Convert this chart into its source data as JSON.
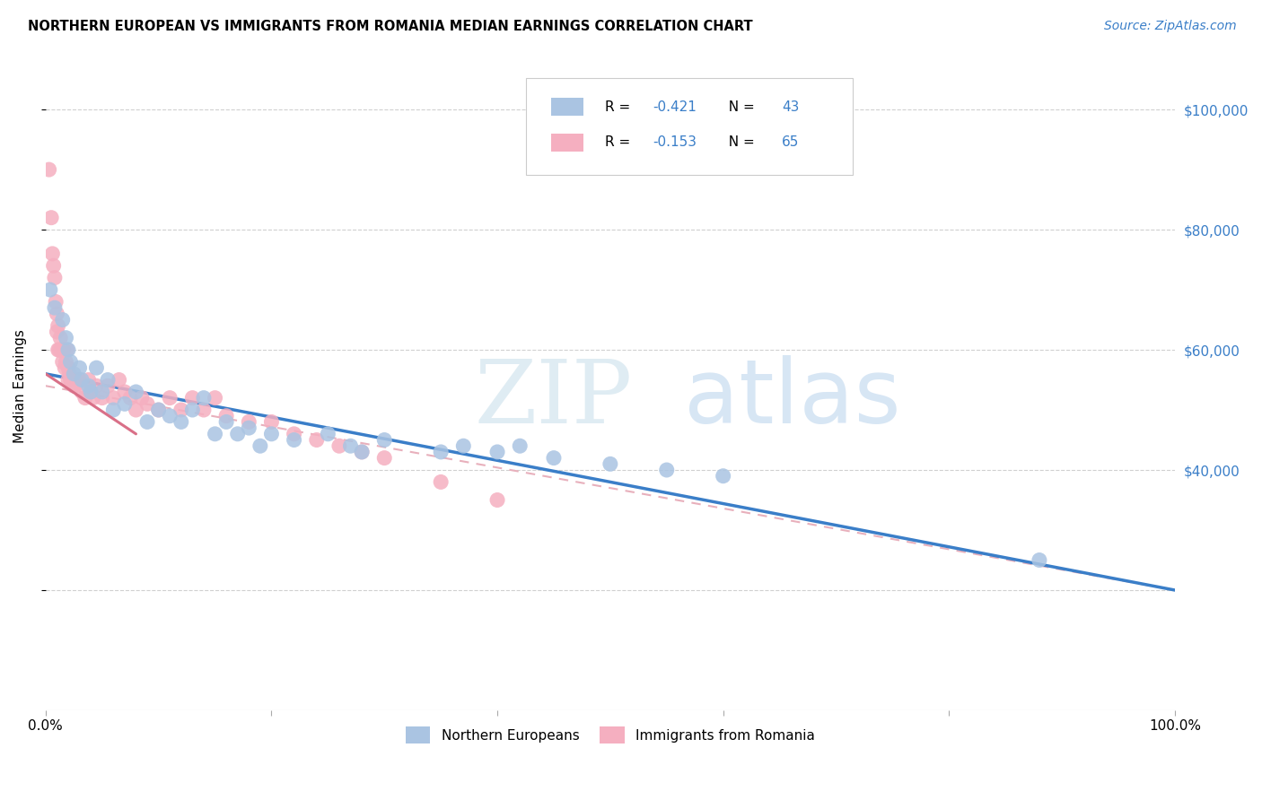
{
  "title": "NORTHERN EUROPEAN VS IMMIGRANTS FROM ROMANIA MEDIAN EARNINGS CORRELATION CHART",
  "source": "Source: ZipAtlas.com",
  "ylabel": "Median Earnings",
  "color_blue": "#aac4e2",
  "color_pink": "#f5afc0",
  "line_blue": "#3a7ec8",
  "line_pink": "#d97088",
  "watermark_zip": "ZIP",
  "watermark_atlas": "atlas",
  "northern_europeans_x": [
    0.4,
    0.8,
    1.5,
    1.8,
    2.0,
    2.2,
    2.5,
    3.0,
    3.2,
    3.8,
    4.0,
    4.5,
    5.0,
    5.5,
    6.0,
    7.0,
    8.0,
    9.0,
    10.0,
    11.0,
    12.0,
    13.0,
    14.0,
    15.0,
    16.0,
    17.0,
    18.0,
    19.0,
    20.0,
    22.0,
    25.0,
    27.0,
    28.0,
    30.0,
    35.0,
    37.0,
    40.0,
    42.0,
    45.0,
    50.0,
    55.0,
    60.0,
    88.0
  ],
  "northern_europeans_y": [
    70000,
    67000,
    65000,
    62000,
    60000,
    58000,
    56000,
    57000,
    55000,
    54000,
    53000,
    57000,
    53000,
    55000,
    50000,
    51000,
    53000,
    48000,
    50000,
    49000,
    48000,
    50000,
    52000,
    46000,
    48000,
    46000,
    47000,
    44000,
    46000,
    45000,
    46000,
    44000,
    43000,
    45000,
    43000,
    44000,
    43000,
    44000,
    42000,
    41000,
    40000,
    39000,
    25000
  ],
  "immigrants_romania_x": [
    0.3,
    0.5,
    0.6,
    0.7,
    0.8,
    0.9,
    1.0,
    1.0,
    1.1,
    1.1,
    1.2,
    1.3,
    1.4,
    1.5,
    1.6,
    1.7,
    1.8,
    1.9,
    2.0,
    2.0,
    2.1,
    2.2,
    2.3,
    2.5,
    2.6,
    2.8,
    3.0,
    3.2,
    3.5,
    3.8,
    4.0,
    4.2,
    4.5,
    5.0,
    5.5,
    6.0,
    6.5,
    7.0,
    7.5,
    8.0,
    8.5,
    9.0,
    10.0,
    11.0,
    12.0,
    13.0,
    14.0,
    15.0,
    16.0,
    18.0,
    20.0,
    22.0,
    24.0,
    26.0,
    28.0,
    30.0,
    35.0,
    40.0
  ],
  "immigrants_romania_y": [
    90000,
    82000,
    76000,
    74000,
    72000,
    68000,
    66000,
    63000,
    60000,
    64000,
    60000,
    62000,
    60000,
    58000,
    60000,
    57000,
    58000,
    60000,
    57000,
    55000,
    56000,
    55000,
    55000,
    54000,
    54000,
    55000,
    55000,
    53000,
    52000,
    55000,
    53000,
    52000,
    54000,
    52000,
    54000,
    52000,
    55000,
    53000,
    52000,
    50000,
    52000,
    51000,
    50000,
    52000,
    50000,
    52000,
    50000,
    52000,
    49000,
    48000,
    48000,
    46000,
    45000,
    44000,
    43000,
    42000,
    38000,
    35000
  ],
  "ne_line_x0": 0,
  "ne_line_x1": 100,
  "ne_line_y0": 56000,
  "ne_line_y1": 20000,
  "ir_line_x0": 0,
  "ir_line_x1": 100,
  "ir_line_y0": 54000,
  "ir_line_y1": 20000,
  "ir_pink_seg_x0": 0,
  "ir_pink_seg_x1": 8,
  "ir_pink_seg_y0": 56000,
  "ir_pink_seg_y1": 46000,
  "xlim": [
    0,
    100
  ],
  "ylim": [
    0,
    108000
  ],
  "yticks": [
    20000,
    40000,
    60000,
    80000,
    100000
  ],
  "right_ytick_labels": [
    "",
    "$40,000",
    "$60,000",
    "$80,000",
    "$100,000"
  ],
  "xtick_positions": [
    0,
    20,
    40,
    60,
    80,
    100
  ],
  "xtick_labels": [
    "0.0%",
    "",
    "",
    "",
    "",
    "100.0%"
  ]
}
